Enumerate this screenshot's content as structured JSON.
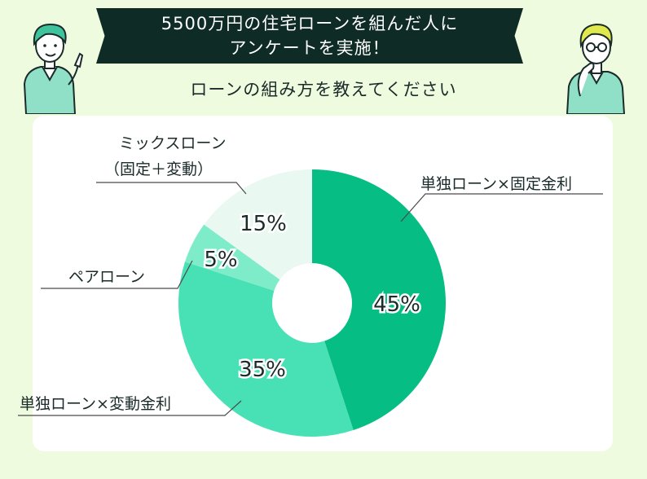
{
  "header": {
    "title_line1": "5500万円の住宅ローンを組んだ人に",
    "title_line2": "アンケートを実施！",
    "question": "ローンの組み方を教えてください"
  },
  "chart_data": {
    "type": "pie",
    "donut": true,
    "title": "",
    "slices": [
      {
        "label": "単独ローン×固定金利",
        "value": 45,
        "value_label": "45%",
        "color": "#06bd84"
      },
      {
        "label": "単独ローン×変動金利",
        "value": 35,
        "value_label": "35%",
        "color": "#48e1b5"
      },
      {
        "label": "ペアローン",
        "value": 5,
        "value_label": "5%",
        "color": "#7eecc8"
      },
      {
        "label": "ミックスローン（固定＋変動）",
        "label_line1": "ミックスローン",
        "label_line2": "（固定＋変動）",
        "value": 15,
        "value_label": "15%",
        "color": "#e9f8f1"
      }
    ]
  },
  "colors": {
    "background": "#eefbdf",
    "banner": "#0e2b26",
    "card": "#ffffff",
    "text": "#1b2b2a",
    "leader": "#4a4a4a"
  },
  "illustrations": {
    "left": "pointing-person-icon",
    "right": "thinking-person-icon"
  }
}
